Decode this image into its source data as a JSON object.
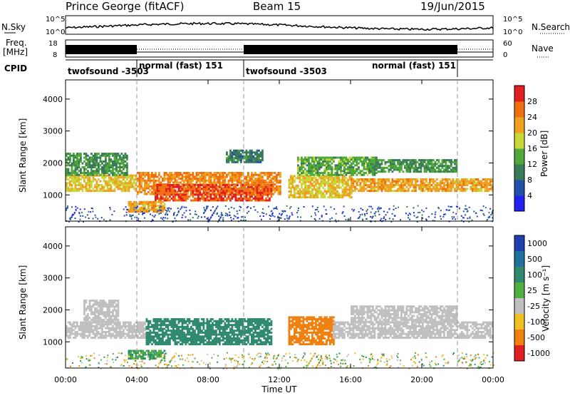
{
  "header": {
    "station": "Prince George (fitACF)",
    "beam": "Beam 15",
    "date": "19/Jun/2015"
  },
  "noise_panel": {
    "left_label": "N.Sky",
    "right_label": "N.Search",
    "left_top_tick": "10^5",
    "left_bottom_tick": "10^0",
    "right_top_tick": "10^5",
    "right_bottom_tick": "10^0"
  },
  "freq_panel": {
    "left_label_1": "Freq.",
    "left_label_2": "[MHz]",
    "right_label": "Nave",
    "left_top_tick": "18",
    "left_bottom_tick": "8",
    "right_top_tick": "60",
    "right_bottom_tick": "0"
  },
  "cpid_panel": {
    "label": "CPID",
    "segments": [
      {
        "text": "twofsound -3503",
        "start": 0.0
      },
      {
        "text": "normal (fast) 151",
        "start": 4.0
      },
      {
        "text": "twofsound -3503",
        "start": 10.0
      },
      {
        "text": "normal (fast) 151",
        "start": 22.0
      }
    ]
  },
  "power_panel": {
    "ylabel": "Slant Range [km]",
    "colorbar_label": "Power [dB]",
    "colorbar_ticks": [
      "4",
      "8",
      "12",
      "16",
      "20",
      "24",
      "28"
    ],
    "colorbar_colors": [
      "#2222ee",
      "#2050a8",
      "#3a7a5a",
      "#4ea83a",
      "#c8d838",
      "#f0a020",
      "#f07010",
      "#e02020"
    ]
  },
  "velocity_panel": {
    "ylabel": "Slant Range [km]",
    "colorbar_label": "Velocity [m s⁻¹]",
    "colorbar_ticks": [
      "1000",
      "500",
      "100",
      "25",
      "-25",
      "-100",
      "-500",
      "-1000"
    ],
    "colorbar_colors": [
      "#2040b0",
      "#2070a0",
      "#308a70",
      "#50b040",
      "#c0c0c0",
      "#f0c020",
      "#f08010",
      "#e02020"
    ]
  },
  "xaxis": {
    "title": "Time UT",
    "ticks": [
      "00:00",
      "04:00",
      "08:00",
      "12:00",
      "16:00",
      "20:00",
      "00:00"
    ]
  },
  "chart_data": {
    "type": "heatmap",
    "x_range_hours": [
      0,
      24
    ],
    "y_range_km": [
      180,
      4600
    ],
    "y_ticks": [
      1000,
      2000,
      3000,
      4000
    ],
    "x_tick_hours": [
      0,
      4,
      8,
      12,
      16,
      20,
      24
    ],
    "mode_boundaries_hours": [
      4.0,
      10.0,
      22.0
    ],
    "power_bands": [
      {
        "t0": 0.0,
        "t1": 4.0,
        "r0": 1100,
        "r1": 1600,
        "db": 20
      },
      {
        "t0": 0.0,
        "t1": 3.5,
        "r0": 1600,
        "r1": 2300,
        "db": 12
      },
      {
        "t0": 4.0,
        "t1": 12.0,
        "r0": 1000,
        "r1": 1700,
        "db": 24
      },
      {
        "t0": 5.0,
        "t1": 11.5,
        "r0": 800,
        "r1": 1300,
        "db": 28
      },
      {
        "t0": 3.5,
        "t1": 5.5,
        "r0": 450,
        "r1": 800,
        "db": 22
      },
      {
        "t0": 12.5,
        "t1": 16.0,
        "r0": 900,
        "r1": 1600,
        "db": 20
      },
      {
        "t0": 13.0,
        "t1": 17.5,
        "r0": 1600,
        "r1": 2200,
        "db": 14
      },
      {
        "t0": 16.0,
        "t1": 24.0,
        "r0": 1100,
        "r1": 1500,
        "db": 22
      },
      {
        "t0": 17.0,
        "t1": 22.0,
        "r0": 1700,
        "r1": 2100,
        "db": 12
      },
      {
        "t0": 9.0,
        "t1": 11.0,
        "r0": 2000,
        "r1": 2400,
        "db": 10
      }
    ],
    "velocity_bands": [
      {
        "t0": 0.0,
        "t1": 4.5,
        "r0": 1100,
        "r1": 1600,
        "v": 0
      },
      {
        "t0": 4.5,
        "t1": 11.5,
        "r0": 900,
        "r1": 1700,
        "v": 150
      },
      {
        "t0": 3.5,
        "t1": 5.5,
        "r0": 450,
        "r1": 700,
        "v": 100
      },
      {
        "t0": 12.5,
        "t1": 15.0,
        "r0": 900,
        "r1": 1800,
        "v": -150
      },
      {
        "t0": 15.0,
        "t1": 24.0,
        "r0": 1100,
        "r1": 1600,
        "v": 0
      },
      {
        "t0": 16.0,
        "t1": 22.0,
        "r0": 1600,
        "r1": 2100,
        "v": 0
      },
      {
        "t0": 1.0,
        "t1": 3.0,
        "r0": 1600,
        "r1": 2300,
        "v": 0
      }
    ]
  }
}
